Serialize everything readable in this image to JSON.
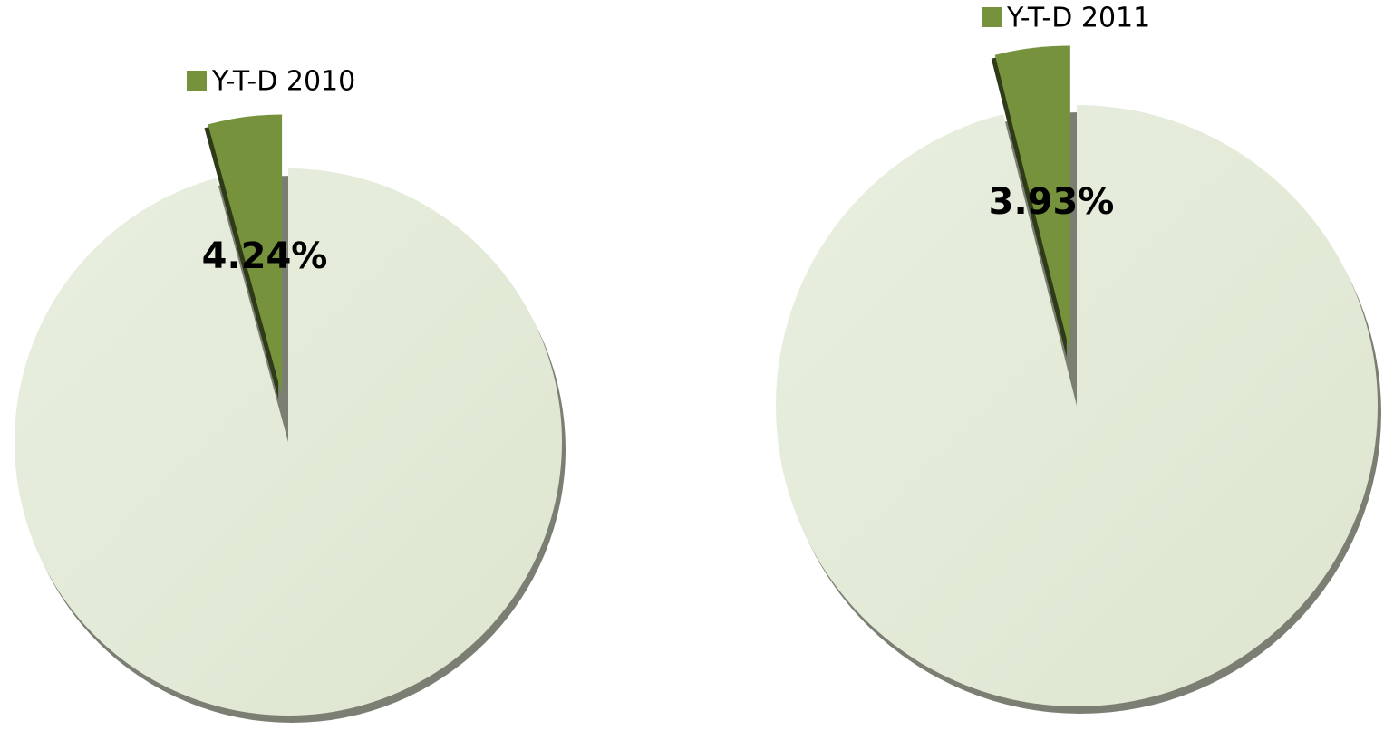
{
  "chart_data": [
    {
      "type": "pie",
      "categories": [
        "Y-T-D 2010",
        null
      ],
      "values": [
        4.24,
        95.76
      ],
      "value_labels": [
        "4.24%",
        null
      ],
      "colors": [
        "#76923c",
        "#e2e9d6"
      ]
    },
    {
      "type": "pie",
      "categories": [
        "Y-T-D 2011",
        null
      ],
      "values": [
        3.93,
        96.07
      ],
      "value_labels": [
        "3.93%",
        null
      ],
      "colors": [
        "#76923c",
        "#e2e9d6"
      ]
    }
  ]
}
